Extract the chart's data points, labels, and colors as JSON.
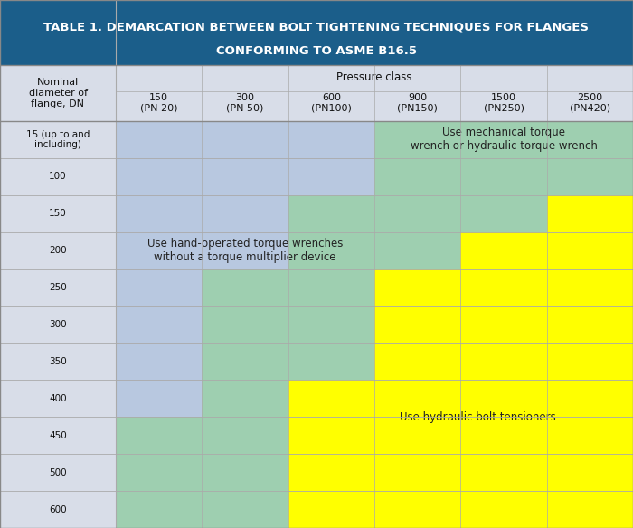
{
  "title_line1": "TABLE 1. DEMARCATION BETWEEN BOLT TIGHTENING TECHNIQUES FOR FLANGES",
  "title_line2": "CONFORMING TO ASME B16.5",
  "title_bg": "#1B5E8A",
  "title_color": "#ffffff",
  "header_col1": "Nominal\ndiameter of\nflange, DN",
  "header_pressure": "Pressure class",
  "pressure_classes": [
    "150\n(PN 20)",
    "300\n(PN 50)",
    "600\n(PN100)",
    "900\n(PN150)",
    "1500\n(PN250)",
    "2500\n(PN420)"
  ],
  "dn_labels": [
    "15 (up to and\nincluding)",
    "100",
    "150",
    "200",
    "250",
    "300",
    "350",
    "400",
    "450",
    "500",
    "600"
  ],
  "color_blue": "#b8c8e0",
  "color_green": "#9ecfb0",
  "color_yellow": "#ffff00",
  "color_header_bg": "#d8dde8",
  "color_border": "#888888",
  "label_blue": "Use hand-operated torque wrenches\nwithout a torque multiplier device",
  "label_green_top": "Use mechanical torque\nwrench or hydraulic torque wrench",
  "label_yellow": "Use hydraulic bolt tensioners",
  "blue_green_boundary": [
    3,
    3,
    2,
    2,
    1,
    1,
    1,
    1,
    0,
    0,
    0
  ],
  "green_yellow_boundary": [
    6,
    6,
    5,
    4,
    3,
    3,
    3,
    2,
    2,
    2,
    2
  ]
}
